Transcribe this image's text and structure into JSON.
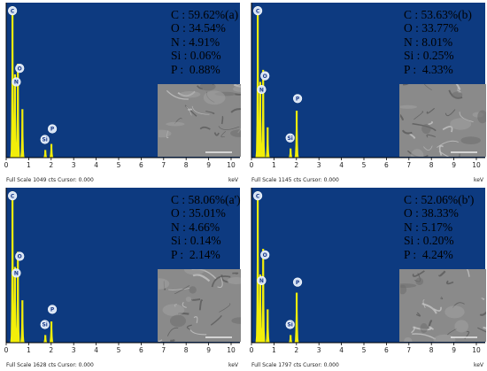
{
  "chart_data": [
    {
      "type": "line",
      "panel_label": "(a)",
      "composition": [
        {
          "el": "C",
          "pct": "59.62%"
        },
        {
          "el": "O",
          "pct": "34.54%"
        },
        {
          "el": "N",
          "pct": "4.91%"
        },
        {
          "el": "Si",
          "pct": "0.06%"
        },
        {
          "el": "P",
          "pct": "0.88%"
        }
      ],
      "footer": "Full Scale 1049 cts Cursor: 0.000",
      "xlabel": "keV",
      "xlim": [
        0,
        10
      ],
      "x_ticks": [
        "0",
        "1",
        "2",
        "3",
        "4",
        "5",
        "6",
        "7",
        "8",
        "9",
        "10"
      ],
      "peaks": [
        {
          "x": 0.28,
          "y": 1.0,
          "label": "C"
        },
        {
          "x": 0.39,
          "y": 0.55,
          "label": "N"
        },
        {
          "x": 0.52,
          "y": 0.62,
          "label": "O"
        },
        {
          "x": 0.72,
          "y": 0.32,
          "label": ""
        },
        {
          "x": 1.74,
          "y": 0.05,
          "label": "Si"
        },
        {
          "x": 2.01,
          "y": 0.09,
          "label": "P"
        }
      ],
      "label_bubbles": [
        {
          "label": "C",
          "x": 0.28,
          "y": 0.97
        },
        {
          "label": "O",
          "x": 0.6,
          "y": 0.59
        },
        {
          "label": "N",
          "x": 0.45,
          "y": 0.5
        },
        {
          "label": "Si",
          "x": 1.72,
          "y": 0.12
        },
        {
          "label": "P",
          "x": 2.05,
          "y": 0.19
        }
      ]
    },
    {
      "type": "line",
      "panel_label": "(b)",
      "composition": [
        {
          "el": "C",
          "pct": "53.63%"
        },
        {
          "el": "O",
          "pct": "33.77%"
        },
        {
          "el": "N",
          "pct": "8.01%"
        },
        {
          "el": "Si",
          "pct": "0.25%"
        },
        {
          "el": "P",
          "pct": "4.33%"
        }
      ],
      "footer": "Full Scale 1145 cts Cursor: 0.000",
      "xlabel": "keV",
      "xlim": [
        0,
        10
      ],
      "x_ticks": [
        "0",
        "1",
        "2",
        "3",
        "4",
        "5",
        "6",
        "7",
        "8",
        "9",
        "10"
      ],
      "peaks": [
        {
          "x": 0.28,
          "y": 1.0,
          "label": "C"
        },
        {
          "x": 0.39,
          "y": 0.5,
          "label": "N"
        },
        {
          "x": 0.52,
          "y": 0.58,
          "label": "O"
        },
        {
          "x": 0.72,
          "y": 0.2,
          "label": ""
        },
        {
          "x": 1.74,
          "y": 0.06,
          "label": "Si"
        },
        {
          "x": 2.01,
          "y": 0.31,
          "label": "P"
        }
      ],
      "label_bubbles": [
        {
          "label": "C",
          "x": 0.28,
          "y": 0.97
        },
        {
          "label": "O",
          "x": 0.6,
          "y": 0.54
        },
        {
          "label": "N",
          "x": 0.45,
          "y": 0.45
        },
        {
          "label": "Si",
          "x": 1.72,
          "y": 0.13
        },
        {
          "label": "P",
          "x": 2.05,
          "y": 0.39
        }
      ]
    },
    {
      "type": "line",
      "panel_label": "(a')",
      "composition": [
        {
          "el": "C",
          "pct": "58.06%"
        },
        {
          "el": "O",
          "pct": "35.01%"
        },
        {
          "el": "N",
          "pct": "4.66%"
        },
        {
          "el": "Si",
          "pct": "0.14%"
        },
        {
          "el": "P",
          "pct": "2.14%"
        }
      ],
      "footer": "Full Scale 1628 cts Cursor: 0.000",
      "xlabel": "keV",
      "xlim": [
        0,
        10
      ],
      "x_ticks": [
        "0",
        "1",
        "2",
        "3",
        "4",
        "5",
        "6",
        "7",
        "8",
        "9",
        "10"
      ],
      "peaks": [
        {
          "x": 0.28,
          "y": 1.0,
          "label": "C"
        },
        {
          "x": 0.39,
          "y": 0.5,
          "label": "N"
        },
        {
          "x": 0.52,
          "y": 0.6,
          "label": "O"
        },
        {
          "x": 0.72,
          "y": 0.28,
          "label": ""
        },
        {
          "x": 1.74,
          "y": 0.05,
          "label": "Si"
        },
        {
          "x": 2.01,
          "y": 0.14,
          "label": "P"
        }
      ],
      "label_bubbles": [
        {
          "label": "C",
          "x": 0.28,
          "y": 0.97
        },
        {
          "label": "O",
          "x": 0.6,
          "y": 0.57
        },
        {
          "label": "N",
          "x": 0.45,
          "y": 0.46
        },
        {
          "label": "Si",
          "x": 1.72,
          "y": 0.12
        },
        {
          "label": "P",
          "x": 2.05,
          "y": 0.22
        }
      ]
    },
    {
      "type": "line",
      "panel_label": "(b')",
      "composition": [
        {
          "el": "C",
          "pct": "52.06%"
        },
        {
          "el": "O",
          "pct": "38.33%"
        },
        {
          "el": "N",
          "pct": "5.17%"
        },
        {
          "el": "Si",
          "pct": "0.20%"
        },
        {
          "el": "P",
          "pct": "4.24%"
        }
      ],
      "footer": "Full Scale 1797 cts Cursor: 0.000",
      "xlabel": "keV",
      "xlim": [
        0,
        10
      ],
      "x_ticks": [
        "0",
        "1",
        "2",
        "3",
        "4",
        "5",
        "6",
        "7",
        "8",
        "9",
        "10"
      ],
      "peaks": [
        {
          "x": 0.28,
          "y": 1.0,
          "label": "C"
        },
        {
          "x": 0.39,
          "y": 0.45,
          "label": "N"
        },
        {
          "x": 0.52,
          "y": 0.62,
          "label": "O"
        },
        {
          "x": 0.72,
          "y": 0.22,
          "label": ""
        },
        {
          "x": 1.74,
          "y": 0.05,
          "label": "Si"
        },
        {
          "x": 2.01,
          "y": 0.33,
          "label": "P"
        }
      ],
      "label_bubbles": [
        {
          "label": "C",
          "x": 0.28,
          "y": 0.97
        },
        {
          "label": "O",
          "x": 0.6,
          "y": 0.58
        },
        {
          "label": "N",
          "x": 0.45,
          "y": 0.41
        },
        {
          "label": "Si",
          "x": 1.72,
          "y": 0.12
        },
        {
          "label": "P",
          "x": 2.05,
          "y": 0.4
        }
      ]
    }
  ],
  "colors": {
    "plot_bg": "#0d3a80",
    "spectrum": "#f2ee0a",
    "label_bubble_fill": "#d8e4f4",
    "label_bubble_text": "#1a3a8a",
    "frame": "#000000",
    "sem_background": "#8a8a8a"
  }
}
